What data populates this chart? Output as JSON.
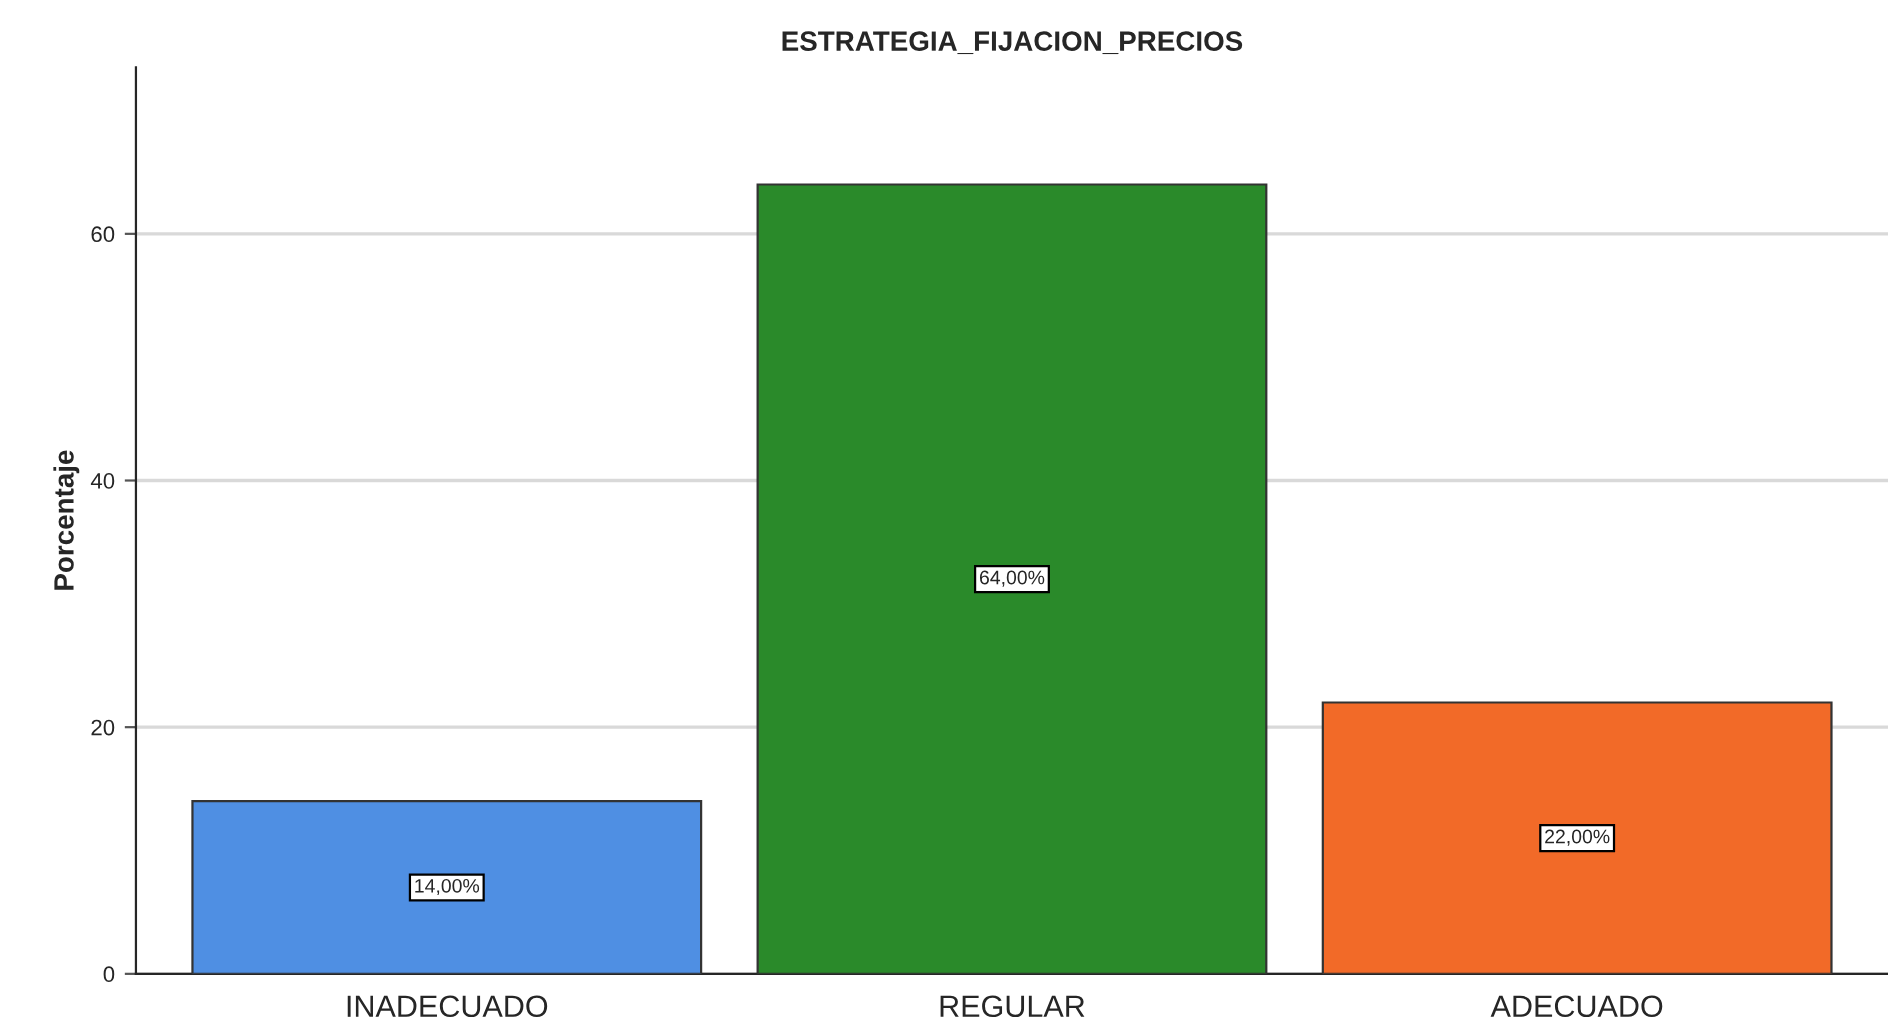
{
  "chart_data": {
    "type": "bar",
    "title": "ESTRATEGIA_FIJACION_PRECIOS",
    "ylabel": "Porcentaje",
    "categories": [
      "INADECUADO",
      "REGULAR",
      "ADECUADO"
    ],
    "values": [
      14,
      64,
      22
    ],
    "colors": [
      "#4f8fe3",
      "#2a8a2a",
      "#f26a28"
    ],
    "value_labels": [
      "14,00%",
      "64,00%",
      "22,00%"
    ],
    "ylim": [
      0,
      73.5
    ],
    "yticks": [
      0,
      20,
      40,
      60
    ],
    "grid": "y"
  }
}
